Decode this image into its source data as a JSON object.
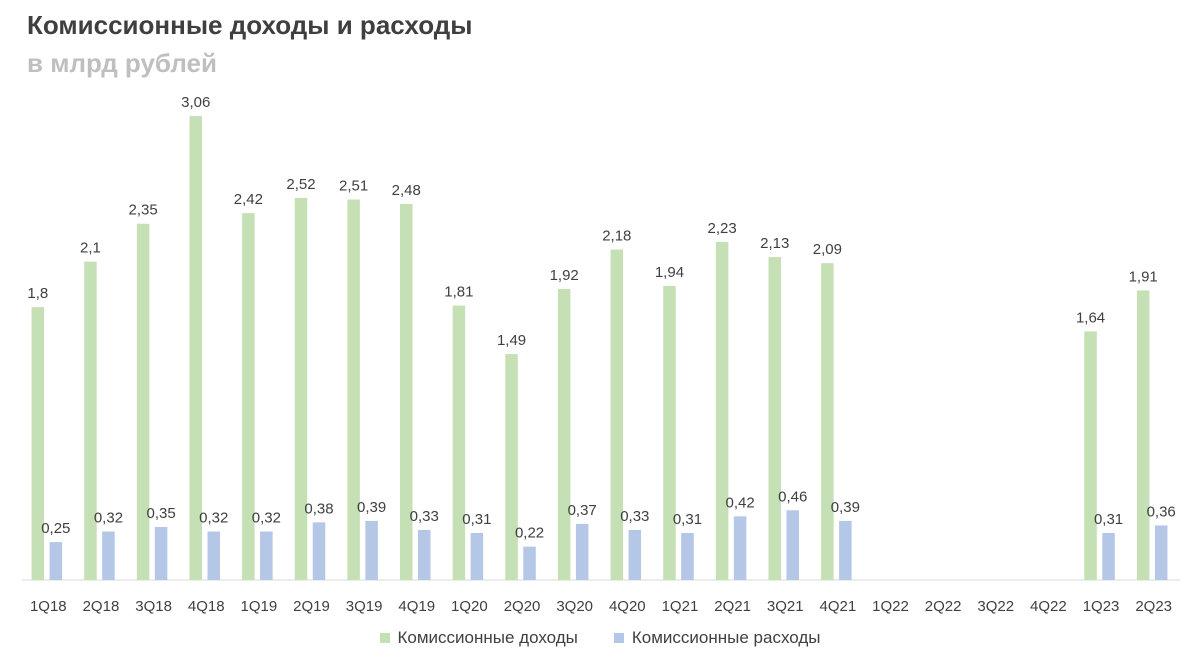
{
  "title": "Комиссионные доходы и расходы",
  "subtitle": "в млрд рублей",
  "colors": {
    "income": "#c5e0b4",
    "expense": "#b4c7e7",
    "axis": "#d9d9d9",
    "text": "#404040"
  },
  "chart_data": {
    "type": "bar",
    "title": "Комиссионные доходы и расходы",
    "subtitle": "в млрд рублей",
    "categories": [
      "1Q18",
      "2Q18",
      "3Q18",
      "4Q18",
      "1Q19",
      "2Q19",
      "3Q19",
      "4Q19",
      "1Q20",
      "2Q20",
      "3Q20",
      "4Q20",
      "1Q21",
      "2Q21",
      "3Q21",
      "4Q21",
      "1Q22",
      "2Q22",
      "3Q22",
      "4Q22",
      "1Q23",
      "2Q23"
    ],
    "series": [
      {
        "name": "Комиссионные доходы",
        "values": [
          1.8,
          2.1,
          2.35,
          3.06,
          2.42,
          2.52,
          2.51,
          2.48,
          1.81,
          1.49,
          1.92,
          2.18,
          1.94,
          2.23,
          2.13,
          2.09,
          null,
          null,
          null,
          null,
          1.64,
          1.91
        ],
        "labels": [
          "1,8",
          "2,1",
          "2,35",
          "3,06",
          "2,42",
          "2,52",
          "2,51",
          "2,48",
          "1,81",
          "1,49",
          "1,92",
          "2,18",
          "1,94",
          "2,23",
          "2,13",
          "2,09",
          "",
          "",
          "",
          "",
          "1,64",
          "1,91"
        ]
      },
      {
        "name": "Комиссионные расходы",
        "values": [
          0.25,
          0.32,
          0.35,
          0.32,
          0.32,
          0.38,
          0.39,
          0.33,
          0.31,
          0.22,
          0.37,
          0.33,
          0.31,
          0.42,
          0.46,
          0.39,
          null,
          null,
          null,
          null,
          0.31,
          0.36
        ],
        "labels": [
          "0,25",
          "0,32",
          "0,35",
          "0,32",
          "0,32",
          "0,38",
          "0,39",
          "0,33",
          "0,31",
          "0,22",
          "0,37",
          "0,33",
          "0,31",
          "0,42",
          "0,46",
          "0,39",
          "",
          "",
          "",
          "",
          "0,31",
          "0,36"
        ]
      }
    ],
    "ylim": [
      0,
      3.1
    ],
    "grid": false,
    "legend": "bottom-center"
  }
}
